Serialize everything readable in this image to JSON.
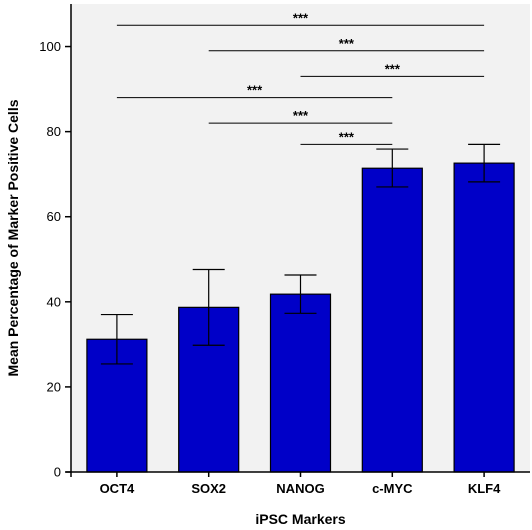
{
  "chart_data": {
    "type": "bar",
    "categories": [
      "OCT4",
      "SOX2",
      "NANOG",
      "c-MYC",
      "KLF4"
    ],
    "values": [
      31.2,
      38.7,
      41.8,
      71.4,
      72.6
    ],
    "error_low": [
      25.4,
      29.8,
      37.3,
      67.0,
      68.2
    ],
    "error_high": [
      37.0,
      47.6,
      46.3,
      75.9,
      77.0
    ],
    "xlabel": "iPSC Markers",
    "ylabel": "Mean  Percentage of Marker Positive Cells",
    "ylim": [
      0,
      110
    ],
    "yticks": [
      0,
      20,
      40,
      60,
      80,
      100
    ],
    "grid": false,
    "legend": "none",
    "bar_color": "#0000c8",
    "plot_background": "#f2f2f2",
    "significance": [
      {
        "from": "OCT4",
        "to": "KLF4",
        "y": 105,
        "label": "***"
      },
      {
        "from": "SOX2",
        "to": "KLF4",
        "y": 99,
        "label": "***"
      },
      {
        "from": "NANOG",
        "to": "KLF4",
        "y": 93,
        "label": "***"
      },
      {
        "from": "OCT4",
        "to": "c-MYC",
        "y": 88,
        "label": "***"
      },
      {
        "from": "SOX2",
        "to": "c-MYC",
        "y": 82,
        "label": "***"
      },
      {
        "from": "NANOG",
        "to": "c-MYC",
        "y": 77,
        "label": "***"
      }
    ]
  }
}
